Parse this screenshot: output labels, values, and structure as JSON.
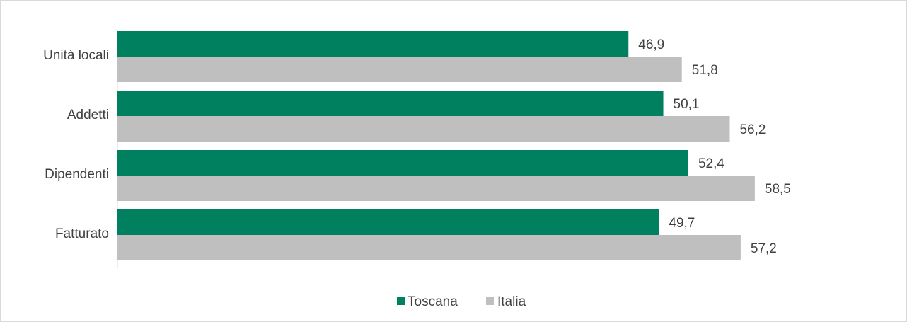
{
  "chart_data": {
    "type": "bar",
    "orientation": "horizontal",
    "categories": [
      "Unità locali",
      "Addetti",
      "Dipendenti",
      "Fatturato"
    ],
    "series": [
      {
        "name": "Toscana",
        "color": "#00805f",
        "values": [
          46.9,
          50.1,
          52.4,
          49.7
        ]
      },
      {
        "name": "Italia",
        "color": "#bfbfbf",
        "values": [
          51.8,
          56.2,
          58.5,
          57.2
        ]
      }
    ],
    "value_labels": {
      "Toscana": [
        "46,9",
        "50,1",
        "52,4",
        "49,7"
      ],
      "Italia": [
        "51,8",
        "56,2",
        "58,5",
        "57,2"
      ]
    },
    "xlim": [
      0,
      70
    ],
    "grid": false,
    "legend_position": "bottom",
    "title": "",
    "xlabel": "",
    "ylabel": ""
  }
}
